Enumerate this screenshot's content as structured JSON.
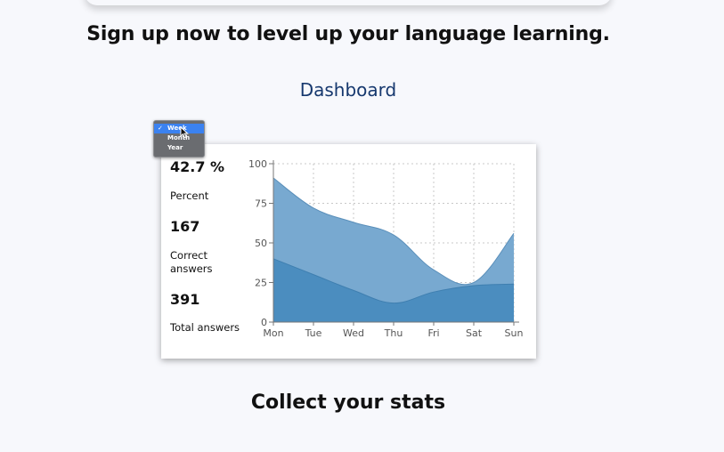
{
  "headline": "Sign up now to level up your language learning.",
  "dashboard_title": "Dashboard",
  "stats": [
    {
      "value": "42.7 %",
      "label": "Percent"
    },
    {
      "value": "167",
      "label": "Correct answers"
    },
    {
      "value": "391",
      "label": "Total answers"
    }
  ],
  "period_dropdown": {
    "options": [
      "Week",
      "Month",
      "Year"
    ],
    "selected": "Week",
    "check": "✓"
  },
  "footer_title": "Collect your stats",
  "chart_data": {
    "type": "area",
    "categories": [
      "Mon",
      "Tue",
      "Wed",
      "Thu",
      "Fri",
      "Sat",
      "Sun"
    ],
    "y_ticks": [
      "100",
      "75",
      "50",
      "25",
      "0"
    ],
    "ylim": [
      0,
      100
    ],
    "grid": true,
    "series": [
      {
        "values": [
          91,
          72,
          63,
          55,
          33,
          25,
          56
        ],
        "color": "#78a9d0"
      },
      {
        "values": [
          40,
          30,
          20,
          12,
          19,
          23,
          24
        ],
        "color": "#4b8dbf"
      }
    ]
  }
}
